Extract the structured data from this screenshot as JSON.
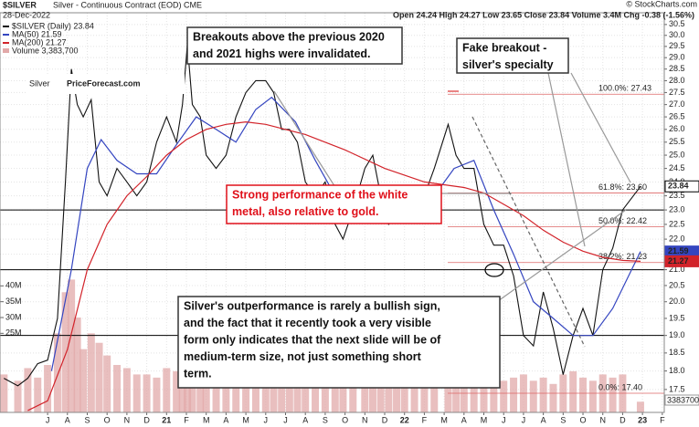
{
  "chart_data": {
    "type": "line",
    "title": "$SILVER",
    "subtitle": "Silver - Continuous Contract (EOD) CME",
    "date": "28-Dec-2022",
    "quote": "Open 24.24 High 24.27 Low 23.65 Close 23.84 Volume 3.4M Chg -0.38 (-1.56%)",
    "source": "© StockCharts.com",
    "watermark": [
      "Silver",
      "PriceForecast.com"
    ],
    "log_scale": true,
    "grid": true,
    "xlim": [
      -1.4,
      32.1
    ],
    "ylim": [
      16.9,
      31.05
    ],
    "xticks": [
      {
        "value": 1,
        "label": "J"
      },
      {
        "value": 2,
        "label": "A"
      },
      {
        "value": 3,
        "label": "S"
      },
      {
        "value": 4,
        "label": "O"
      },
      {
        "value": 5,
        "label": "N"
      },
      {
        "value": 6,
        "label": "D"
      },
      {
        "value": 7,
        "label": "21"
      },
      {
        "value": 8,
        "label": "F"
      },
      {
        "value": 9,
        "label": "M"
      },
      {
        "value": 10,
        "label": "A"
      },
      {
        "value": 11,
        "label": "M"
      },
      {
        "value": 12,
        "label": "J"
      },
      {
        "value": 13,
        "label": "J"
      },
      {
        "value": 14,
        "label": "A"
      },
      {
        "value": 15,
        "label": "S"
      },
      {
        "value": 16,
        "label": "O"
      },
      {
        "value": 17,
        "label": "N"
      },
      {
        "value": 18,
        "label": "D"
      },
      {
        "value": 19,
        "label": "22"
      },
      {
        "value": 20,
        "label": "F"
      },
      {
        "value": 21,
        "label": "M"
      },
      {
        "value": 22,
        "label": "A"
      },
      {
        "value": 23,
        "label": "M"
      },
      {
        "value": 24,
        "label": "J"
      },
      {
        "value": 25,
        "label": "J"
      },
      {
        "value": 26,
        "label": "A"
      },
      {
        "value": 27,
        "label": "S"
      },
      {
        "value": 28,
        "label": "O"
      },
      {
        "value": 29,
        "label": "N"
      },
      {
        "value": 30,
        "label": "D"
      },
      {
        "value": 31,
        "label": "23"
      },
      {
        "value": 32,
        "label": "F"
      }
    ],
    "yticks": [
      30.5,
      {
        "value": 30,
        "label": "30.0"
      },
      29.5,
      {
        "value": 29,
        "label": "29.0"
      },
      28.5,
      {
        "value": 28,
        "label": "28.0"
      },
      27.5,
      {
        "value": 27,
        "label": "27.0"
      },
      26.5,
      {
        "value": 26,
        "label": "26.0"
      },
      25.5,
      {
        "value": 25,
        "label": "25.0"
      },
      24.5,
      {
        "value": 24,
        "label": "24.0"
      },
      23.5,
      {
        "value": 23,
        "label": "23.0"
      },
      22.5,
      {
        "value": 22,
        "label": "22.0"
      },
      21.5,
      {
        "value": 21,
        "label": "21.0"
      },
      20.5,
      {
        "value": 20,
        "label": "20.0"
      },
      19.5,
      {
        "value": 19,
        "label": "19.0"
      },
      18.5,
      {
        "value": 18,
        "label": "18.0"
      },
      17.5
    ],
    "series": [
      {
        "name": "$SILVER (Daily) 23.84",
        "color": "#111111",
        "x": [
          -1.2,
          -0.5,
          0,
          0.5,
          1,
          1.5,
          1.9,
          2.2,
          2.5,
          2.8,
          3.2,
          3.6,
          4,
          4.5,
          5,
          5.5,
          6,
          6.5,
          7,
          7.5,
          7.8,
          8.05,
          8.3,
          8.7,
          9,
          9.5,
          10,
          10.5,
          11,
          11.5,
          12,
          12.4,
          12.8,
          13.2,
          13.6,
          14,
          14.5,
          15,
          15.5,
          15.9,
          16.4,
          17,
          17.4,
          17.8,
          18.2,
          18.6,
          19,
          19.5,
          20,
          20.5,
          21.2,
          21.6,
          22,
          22.5,
          23,
          23.5,
          24,
          24.5,
          25,
          25.5,
          26,
          26.5,
          27,
          27.5,
          28,
          28.5,
          29,
          29.5,
          30,
          30.9
        ],
        "values": [
          17.8,
          17.6,
          17.8,
          18.2,
          18.3,
          19.5,
          24,
          28.5,
          27,
          26.5,
          27.2,
          24,
          23.5,
          24.5,
          24,
          23.5,
          24,
          25.5,
          26.5,
          25.5,
          27,
          29.6,
          27,
          26.5,
          25,
          24.5,
          25,
          26.5,
          27.5,
          28,
          28,
          27.5,
          26,
          26,
          25.5,
          24,
          23.5,
          24,
          22.5,
          22,
          23,
          24.5,
          25,
          23.5,
          22.5,
          22.8,
          23,
          22.7,
          23.5,
          24.5,
          26.2,
          25,
          24.5,
          24.5,
          22.5,
          21.8,
          21.8,
          20.8,
          19,
          18.7,
          20.3,
          19.2,
          17.9,
          19,
          19.8,
          19,
          21,
          21.7,
          23,
          23.84
        ],
        "last_label": "23.84"
      },
      {
        "name": "MA(50) 21.59",
        "color": "#3445c0",
        "x": [
          1.2,
          2.2,
          3,
          3.7,
          4.5,
          5.5,
          6.5,
          7.5,
          8.5,
          9.5,
          10.5,
          11.5,
          12.3,
          13.5,
          14.5,
          15.5,
          16.5,
          17.5,
          18.5,
          19.5,
          20.5,
          21.5,
          22.5,
          23.5,
          24.5,
          25.5,
          26.5,
          27.5,
          28.5,
          29.5,
          30.9
        ],
        "values": [
          18,
          21,
          24.5,
          25.6,
          24.8,
          24.3,
          24.3,
          25.4,
          26.5,
          26,
          25.5,
          26.8,
          27.3,
          26.3,
          24.8,
          23.5,
          23.3,
          23.8,
          23.3,
          23,
          23.5,
          24.5,
          24.8,
          23,
          21.5,
          20,
          19.5,
          19,
          19,
          19.8,
          21.59
        ],
        "last_label": "21.59"
      },
      {
        "name": "MA(200) 21.27",
        "color": "#d2232a",
        "x": [
          0,
          1,
          2,
          3,
          4,
          5,
          6,
          7,
          8,
          9,
          10,
          11,
          12,
          14,
          16,
          18,
          20,
          21,
          22,
          23,
          24,
          25,
          26,
          27,
          28,
          29,
          30,
          30.9
        ],
        "values": [
          16.95,
          17.2,
          18.6,
          21,
          22.5,
          23.5,
          24.2,
          25,
          25.6,
          26,
          26.2,
          26.3,
          26.2,
          25.8,
          25.2,
          24.5,
          24,
          23.9,
          23.8,
          23.6,
          23.2,
          22.8,
          22.3,
          21.9,
          21.6,
          21.4,
          21.3,
          21.27
        ],
        "last_label": "21.27"
      }
    ],
    "volume": {
      "name": "Volume 3,383,700",
      "color": "#e2a9a9",
      "vlim": [
        0,
        45
      ],
      "vticks": [
        {
          "value": 40,
          "label": "40M"
        },
        {
          "value": 35,
          "label": "35M"
        },
        {
          "value": 30,
          "label": "30M"
        },
        {
          "value": 25,
          "label": "25M"
        }
      ],
      "values": [
        12,
        10,
        14,
        11,
        15,
        25,
        38,
        42,
        30,
        20,
        25,
        22,
        18,
        15,
        14,
        12,
        12,
        11,
        14,
        13,
        18,
        35,
        22,
        15,
        13,
        12,
        12,
        14,
        15,
        12,
        11,
        12,
        10,
        9,
        10,
        11,
        9,
        10,
        9,
        11,
        9,
        10,
        12,
        10,
        11,
        9,
        10,
        9,
        10,
        11,
        16,
        13,
        11,
        10,
        12,
        11,
        10,
        11,
        12,
        10,
        11,
        9,
        12,
        13,
        11,
        10,
        12,
        11,
        12,
        3.38
      ],
      "last_label": "3383700"
    },
    "fib_levels": [
      {
        "value": 27.43,
        "label": "100.0%: 27.43"
      },
      {
        "value": 23.6,
        "label": "61.8%: 23.60"
      },
      {
        "value": 22.42,
        "label": "50.0%: 22.42"
      },
      {
        "value": 21.23,
        "label": "38.2%: 21.23"
      },
      {
        "value": 17.4,
        "label": "0.0%: 17.40"
      }
    ],
    "support_lines": [
      23.0,
      21.0,
      19.0
    ],
    "annotations": [
      {
        "lines": [
          "Breakouts above the previous 2020",
          "and 2021 highs were invalidated."
        ]
      },
      {
        "lines": [
          "Fake breakout -",
          "silver's specialty"
        ]
      },
      {
        "lines": [
          "Strong performance of the white",
          "metal, also relative to gold."
        ]
      },
      {
        "lines": [
          "Silver's outperformance is rarely a bullish sign,",
          "and the fact that it recently took a very visible",
          "form only indicates that the next slide will be of",
          "medium-term size, not just something short",
          "term."
        ]
      }
    ]
  }
}
